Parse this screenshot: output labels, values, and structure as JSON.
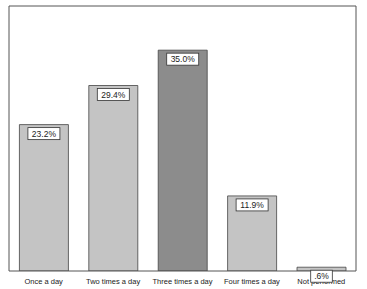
{
  "chart_data": {
    "type": "bar",
    "categories": [
      "Once a day",
      "Two times a day",
      "Three times a day",
      "Four times a day",
      "Not performed"
    ],
    "values": [
      23.2,
      29.4,
      35.0,
      11.9,
      0.6
    ],
    "value_labels": [
      "23.2%",
      "29.4%",
      "35.0%",
      "11.9%",
      ".6%"
    ],
    "colors": [
      "#c4c4c4",
      "#c4c4c4",
      "#8c8c8c",
      "#c4c4c4",
      "#c4c4c4"
    ],
    "ylim": [
      0,
      42
    ],
    "data_labels": true,
    "tick_labels": "x",
    "grid": false
  }
}
